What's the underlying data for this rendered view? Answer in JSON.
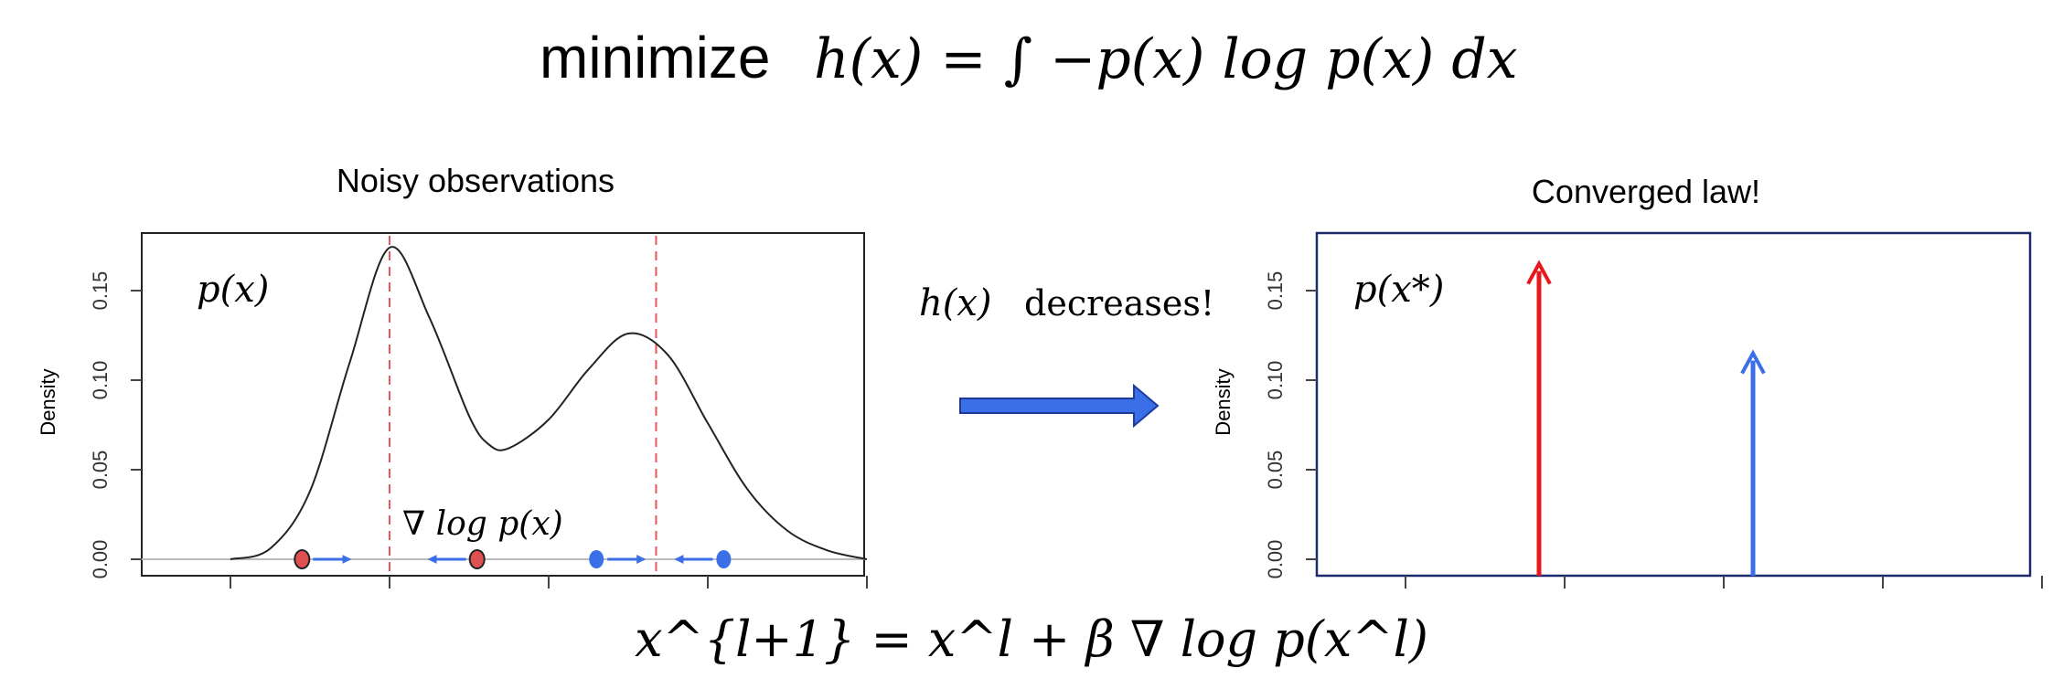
{
  "equation_top": {
    "prefix": "minimize",
    "formula": "h(x) = ∫ −p(x) log p(x) dx"
  },
  "left_panel": {
    "title": "Noisy observations",
    "density_label": "p(x)",
    "gradient_label": "∇ log p(x)"
  },
  "middle": {
    "label_math": "h(x)",
    "label_text": "decreases!",
    "arrow_color": "#3a6fe8"
  },
  "right_panel": {
    "title": "Converged law!",
    "density_label": "p(x*)"
  },
  "equation_bottom": {
    "formula": "x^{l+1} = x^l + β ∇ log p(x^l)"
  },
  "colors": {
    "red": "#e8191c",
    "blue": "#3a6fe8",
    "panel_border_right": "#1b2b6b",
    "dashed_mode": "#e8555a"
  },
  "chart_data": [
    {
      "type": "line",
      "ylabel": "Density",
      "yticks": [
        "0.00",
        "0.05",
        "0.10",
        "0.15"
      ],
      "ylim": [
        0,
        0.18
      ],
      "xlim": [
        -5,
        5
      ],
      "x": [
        -4,
        -3.5,
        -3,
        -2.5,
        -2,
        -1.5,
        -1,
        -0.75,
        -0.5,
        0,
        0.5,
        1,
        1.5,
        2,
        2.5,
        3,
        3.5,
        4
      ],
      "y": [
        0.0,
        0.006,
        0.038,
        0.11,
        0.174,
        0.135,
        0.08,
        0.064,
        0.062,
        0.078,
        0.106,
        0.126,
        0.114,
        0.076,
        0.039,
        0.016,
        0.005,
        0.0
      ],
      "modes": [
        -2,
        1.35
      ],
      "observations": [
        {
          "x": -3.1,
          "color": "red",
          "direction": "right"
        },
        {
          "x": -0.9,
          "color": "red",
          "direction": "left"
        },
        {
          "x": 0.6,
          "color": "blue",
          "direction": "right"
        },
        {
          "x": 2.2,
          "color": "blue",
          "direction": "left"
        }
      ]
    },
    {
      "type": "bar",
      "ylabel": "Density",
      "yticks": [
        "0.00",
        "0.05",
        "0.10",
        "0.15"
      ],
      "ylim": [
        0,
        0.18
      ],
      "xlim": [
        -5,
        5
      ],
      "spikes": [
        {
          "x": -2,
          "value": 0.165,
          "color": "red"
        },
        {
          "x": 1.35,
          "value": 0.115,
          "color": "blue"
        }
      ]
    }
  ]
}
